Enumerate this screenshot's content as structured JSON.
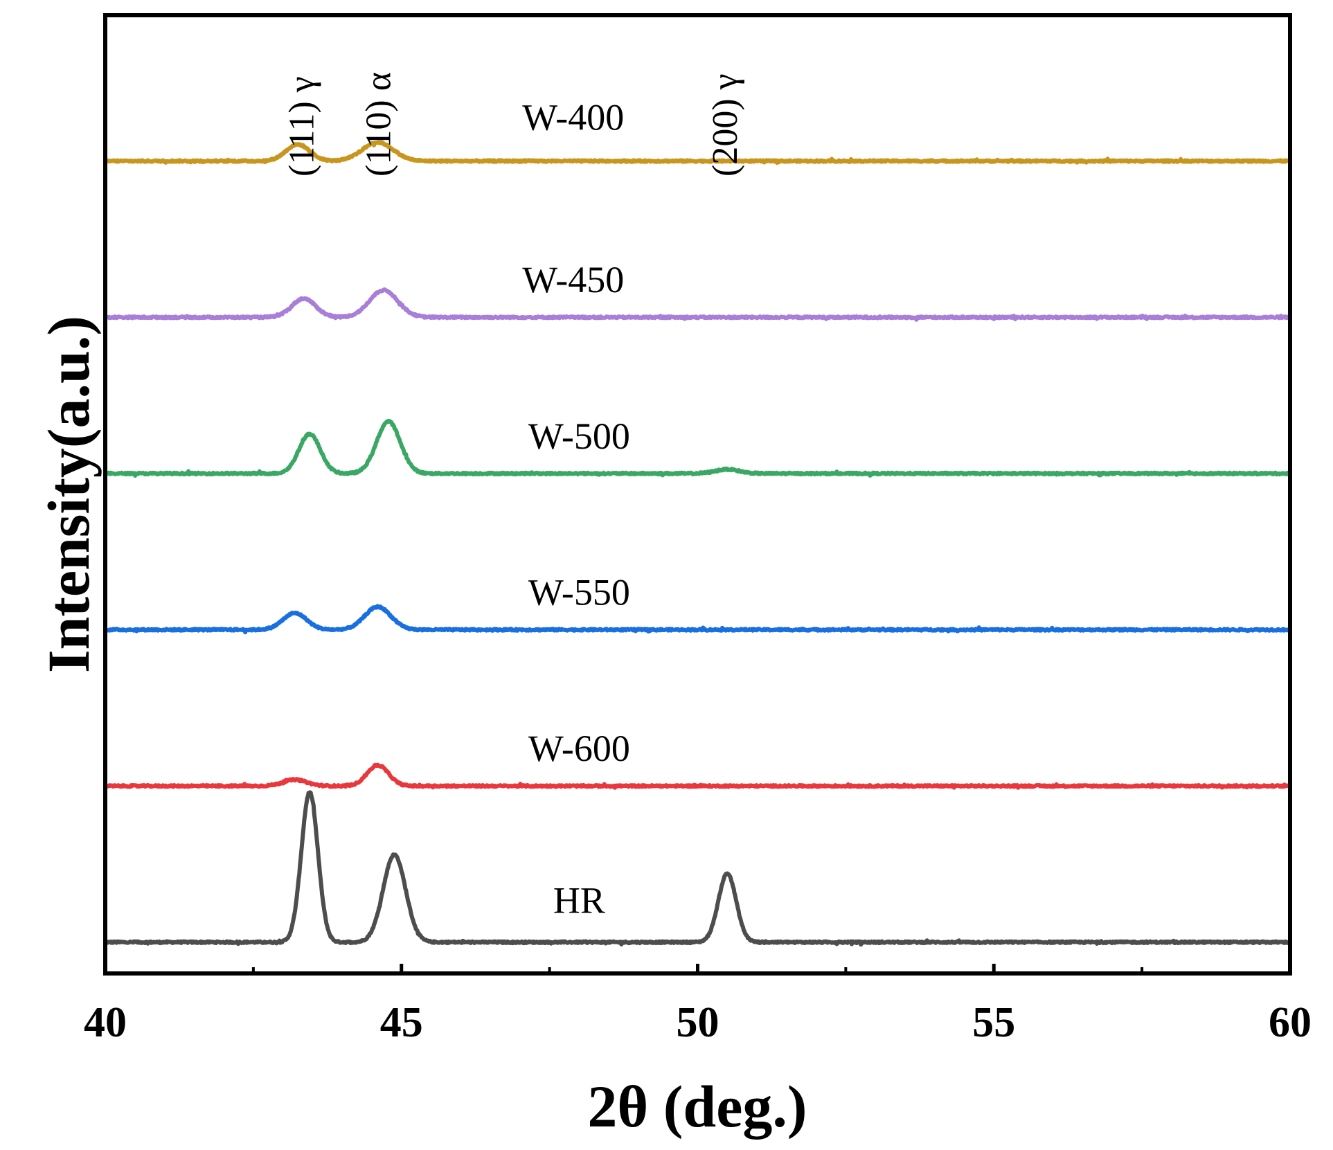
{
  "chart_data": {
    "type": "line",
    "title": "",
    "xlabel": "2θ (deg.)",
    "ylabel": "Intensity(a.u.)",
    "xlim": [
      40,
      60
    ],
    "xticks": [
      40,
      45,
      50,
      55,
      60
    ],
    "xtick_labels": [
      "40",
      "45",
      "50",
      "55",
      "60"
    ],
    "minor_xticks": [
      42.5,
      47.5,
      52.5,
      57.5
    ],
    "grid": false,
    "legend": "inline labels",
    "series": [
      {
        "name": "HR",
        "color": "#4d4d4d",
        "baseline": 0,
        "noise": 0.004,
        "peaks": [
          {
            "x": 43.45,
            "height": 0.72,
            "width": 0.14
          },
          {
            "x": 44.88,
            "height": 0.42,
            "width": 0.19
          },
          {
            "x": 50.5,
            "height": 0.33,
            "width": 0.15
          }
        ]
      },
      {
        "name": "W-600",
        "color": "#e8383d",
        "baseline": 0.75,
        "noise": 0.004,
        "peaks": [
          {
            "x": 43.2,
            "height": 0.03,
            "width": 0.2
          },
          {
            "x": 44.6,
            "height": 0.1,
            "width": 0.18
          }
        ]
      },
      {
        "name": "W-550",
        "color": "#1a6fe0",
        "baseline": 1.5,
        "noise": 0.004,
        "peaks": [
          {
            "x": 43.2,
            "height": 0.08,
            "width": 0.2
          },
          {
            "x": 44.6,
            "height": 0.11,
            "width": 0.22
          }
        ]
      },
      {
        "name": "W-500",
        "color": "#3aa864",
        "baseline": 2.25,
        "noise": 0.004,
        "peaks": [
          {
            "x": 43.45,
            "height": 0.19,
            "width": 0.18
          },
          {
            "x": 44.78,
            "height": 0.25,
            "width": 0.2
          },
          {
            "x": 50.5,
            "height": 0.02,
            "width": 0.2
          }
        ]
      },
      {
        "name": "W-450",
        "color": "#a97ed9",
        "baseline": 3.0,
        "noise": 0.004,
        "peaks": [
          {
            "x": 43.35,
            "height": 0.09,
            "width": 0.2
          },
          {
            "x": 44.7,
            "height": 0.13,
            "width": 0.24
          }
        ]
      },
      {
        "name": "W-400",
        "color": "#c8961e",
        "baseline": 3.75,
        "noise": 0.004,
        "peaks": [
          {
            "x": 43.25,
            "height": 0.08,
            "width": 0.2
          },
          {
            "x": 44.6,
            "height": 0.09,
            "width": 0.26
          }
        ]
      }
    ],
    "annotations": [
      {
        "text": "(111) γ",
        "x": 43.3
      },
      {
        "text": "(110) α",
        "x": 44.6
      },
      {
        "text": "(200) γ",
        "x": 50.45
      }
    ]
  }
}
